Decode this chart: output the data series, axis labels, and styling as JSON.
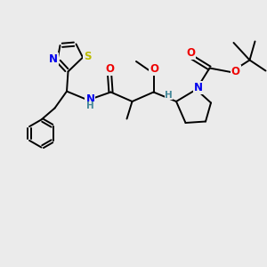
{
  "bg_color": "#ebebeb",
  "bond_color": "#000000",
  "bond_width": 1.4,
  "atom_colors": {
    "N": "#0000ee",
    "S": "#bbbb00",
    "O": "#ee0000",
    "H": "#448899",
    "C": "#000000"
  },
  "fs": 8.5,
  "fs_small": 7.0
}
